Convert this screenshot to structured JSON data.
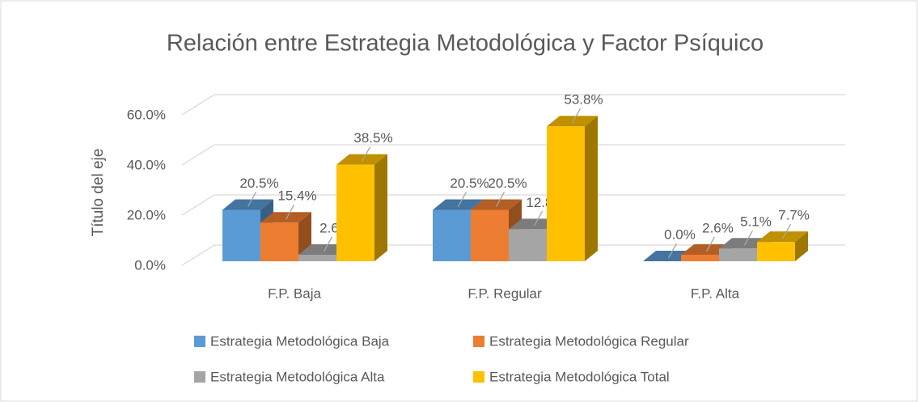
{
  "chart_data": {
    "type": "bar3d",
    "title": "Relación entre Estrategia Metodológica y Factor Psíquico",
    "y_axis_title": "Título del eje",
    "categories": [
      "F.P. Baja",
      "F.P. Regular",
      "F.P. Alta"
    ],
    "series": [
      {
        "name": "Estrategia Metodológica Baja",
        "color": "#5b9bd5",
        "values": [
          20.5,
          20.5,
          0.0
        ],
        "value_labels": [
          "20.5%",
          "20.5%",
          "0.0%"
        ]
      },
      {
        "name": "Estrategia Metodológica Regular",
        "color": "#ed7d31",
        "values": [
          15.4,
          20.5,
          2.6
        ],
        "value_labels": [
          "15.4%",
          "20.5%",
          "2.6%"
        ]
      },
      {
        "name": "Estrategia Metodológica Alta",
        "color": "#a5a5a5",
        "values": [
          2.6,
          12.8,
          5.1
        ],
        "value_labels": [
          "2.6%",
          "12.8%",
          "5.1%"
        ]
      },
      {
        "name": "Estrategia Metodológica Total",
        "color": "#ffc000",
        "values": [
          38.5,
          53.8,
          7.7
        ],
        "value_labels": [
          "38.5%",
          "53.8%",
          "7.7%"
        ]
      }
    ],
    "ylim": [
      0,
      60
    ],
    "yticks": [
      {
        "value": 0,
        "label": "0.0%"
      },
      {
        "value": 20,
        "label": "20.0%"
      },
      {
        "value": 40,
        "label": "40.0%"
      },
      {
        "value": 60,
        "label": "60.0%"
      }
    ],
    "grid": true,
    "legend": "bottom"
  }
}
